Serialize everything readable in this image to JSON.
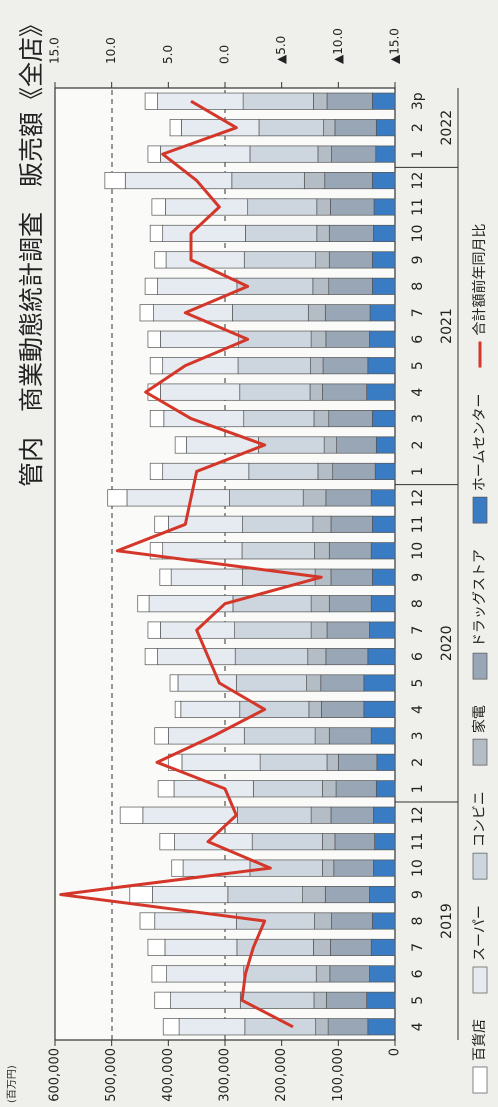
{
  "chart_data": {
    "type": "bar",
    "title": "管内　商業動態統計調査　販売額《全店》",
    "y_unit": "(百万円)",
    "categories": [
      "4",
      "5",
      "6",
      "7",
      "8",
      "9",
      "10",
      "11",
      "12",
      "1",
      "2",
      "3",
      "4",
      "5",
      "6",
      "7",
      "8",
      "9",
      "10",
      "11",
      "12",
      "1",
      "2",
      "3",
      "4",
      "5",
      "6",
      "7",
      "8",
      "9",
      "10",
      "11",
      "12",
      "1",
      "2",
      "3p"
    ],
    "year_labels": [
      "2019",
      "2020",
      "2021",
      "2022"
    ],
    "ylim": [
      0,
      600000
    ],
    "yticks": [
      0,
      {
        "value": 100000,
        "label": "100,000"
      },
      {
        "value": 200000,
        "label": "200,000"
      },
      {
        "value": 300000,
        "label": "300,000"
      },
      {
        "value": 400000,
        "label": "400,000"
      },
      {
        "value": 500000,
        "label": "500,000"
      },
      {
        "value": 600000,
        "label": "600,000"
      }
    ],
    "y2lim": [
      -15,
      15
    ],
    "y2ticks": [
      {
        "value": 15,
        "label": "15.0"
      },
      {
        "value": 10,
        "label": "10.0"
      },
      {
        "value": 5,
        "label": "5.0"
      },
      {
        "value": 0,
        "label": "0.0"
      },
      {
        "value": -5,
        "label": "▲5.0"
      },
      {
        "value": -10,
        "label": "▲10.0"
      },
      {
        "value": -15,
        "label": "▲15.0"
      }
    ],
    "series": [
      {
        "name": "百貨店",
        "color": "#ffffff",
        "values": [
          28000,
          28000,
          26000,
          30000,
          26000,
          40000,
          20000,
          26000,
          40000,
          28000,
          24000,
          24000,
          10000,
          14000,
          22000,
          22000,
          20000,
          20000,
          22000,
          24000,
          34000,
          22000,
          20000,
          24000,
          22000,
          22000,
          22000,
          24000,
          22000,
          20000,
          22000,
          24000,
          36000,
          22000,
          20000,
          22000
        ]
      },
      {
        "name": "スーパー",
        "color": "#e6ebf1",
        "values": [
          116000,
          123000,
          136000,
          127000,
          144000,
          133000,
          118000,
          137000,
          167000,
          140000,
          138000,
          134000,
          104000,
          103000,
          137000,
          131000,
          148000,
          126000,
          140000,
          131000,
          181000,
          152000,
          127000,
          141000,
          140000,
          133000,
          138000,
          139000,
          140000,
          138000,
          146000,
          145000,
          188000,
          158000,
          137000,
          151000
        ]
      },
      {
        "name": "コンビニ",
        "color": "#cdd5de",
        "values": [
          125000,
          130000,
          128000,
          135000,
          138000,
          132000,
          128000,
          124000,
          130000,
          122000,
          118000,
          125000,
          122000,
          124000,
          128000,
          135000,
          138000,
          128000,
          128000,
          124000,
          130000,
          122000,
          116000,
          124000,
          124000,
          128000,
          128000,
          134000,
          134000,
          126000,
          126000,
          122000,
          128000,
          120000,
          114000,
          124000
        ]
      },
      {
        "name": "家電",
        "color": "#b4bcc6",
        "values": [
          22000,
          22000,
          24000,
          30000,
          30000,
          40000,
          20000,
          22000,
          35000,
          24000,
          20000,
          25000,
          22000,
          25000,
          32000,
          28000,
          32000,
          28000,
          26000,
          32000,
          40000,
          26000,
          22000,
          26000,
          22000,
          22000,
          26000,
          30000,
          28000,
          24000,
          22000,
          24000,
          36000,
          24000,
          20000,
          24000
        ]
      },
      {
        "name": "ドラッグストア",
        "color": "#98a6b5",
        "values": [
          70000,
          71000,
          70000,
          72000,
          72000,
          78000,
          70000,
          70000,
          75000,
          71000,
          68000,
          74000,
          75000,
          76000,
          74000,
          75000,
          74000,
          73000,
          74000,
          73000,
          80000,
          75000,
          70000,
          77000,
          78000,
          79000,
          77000,
          79000,
          77000,
          76000,
          78000,
          77000,
          84000,
          78000,
          73000,
          80000
        ]
      },
      {
        "name": "ホームセンター",
        "color": "#3a7cc3",
        "values": [
          48000,
          50000,
          45000,
          42000,
          40000,
          45000,
          38000,
          36000,
          38000,
          33000,
          32000,
          42000,
          55000,
          55000,
          48000,
          45000,
          42000,
          40000,
          42000,
          40000,
          42000,
          35000,
          33000,
          40000,
          50000,
          48000,
          45000,
          44000,
          40000,
          40000,
          38000,
          37000,
          40000,
          34000,
          33000,
          40000
        ]
      },
      {
        "name": "合計額前年同月比",
        "color": "#d4372a",
        "axis": "y2",
        "values": [
          -6.0,
          -1.5,
          -1.8,
          -2.5,
          -3.5,
          14.5,
          -4.0,
          1.5,
          -1.0,
          0.0,
          6.0,
          1.0,
          -3.5,
          0.5,
          1.5,
          2.5,
          0.0,
          -8.5,
          9.5,
          3.5,
          3.0,
          2.5,
          -3.5,
          3.0,
          7.0,
          3.5,
          -2.0,
          3.5,
          -2.0,
          3.0,
          3.0,
          0.5,
          2.5,
          5.5,
          -1.0,
          3.0
        ]
      }
    ]
  }
}
